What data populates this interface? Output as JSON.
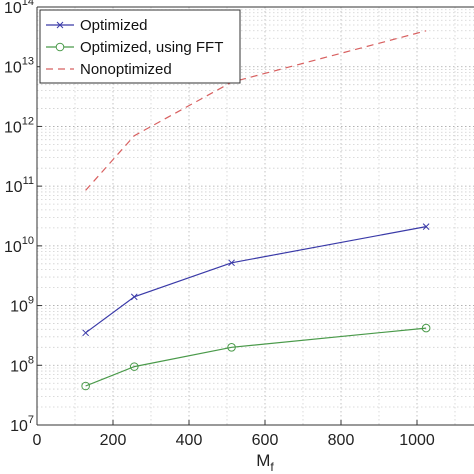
{
  "chart_data": {
    "type": "line",
    "xlabel": "M",
    "xlabel_subscript": "f",
    "ylabel": "",
    "xlim": [
      0,
      1150
    ],
    "ylim": [
      10000000,
      100000000000000
    ],
    "y_scale": "log",
    "grid": true,
    "legend_position": "top-left",
    "x_ticks": [
      "0",
      "200",
      "400",
      "600",
      "800",
      "1000"
    ],
    "y_ticks": [
      {
        "base": "10",
        "exp": "7"
      },
      {
        "base": "10",
        "exp": "8"
      },
      {
        "base": "10",
        "exp": "9"
      },
      {
        "base": "10",
        "exp": "10"
      },
      {
        "base": "10",
        "exp": "11"
      },
      {
        "base": "10",
        "exp": "12"
      },
      {
        "base": "10",
        "exp": "13"
      },
      {
        "base": "10",
        "exp": "14"
      }
    ],
    "series": [
      {
        "name": "Optimized",
        "color": "#3a3aa8",
        "marker": "x",
        "dash": "solid",
        "x": [
          128,
          256,
          512,
          1024
        ],
        "y": [
          350000000,
          1400000000,
          5200000000,
          21000000000
        ]
      },
      {
        "name": "Optimized, using FFT",
        "color": "#4a9a4a",
        "marker": "circle",
        "dash": "solid",
        "x": [
          128,
          256,
          512,
          1024
        ],
        "y": [
          45000000,
          95000000,
          200000000,
          420000000
        ]
      },
      {
        "name": "Nonoptimized",
        "color": "#d86060",
        "marker": "none",
        "dash": "dashed",
        "x": [
          128,
          256,
          512,
          1024
        ],
        "y": [
          85000000000,
          700000000000,
          5500000000000,
          40000000000000
        ]
      }
    ]
  }
}
